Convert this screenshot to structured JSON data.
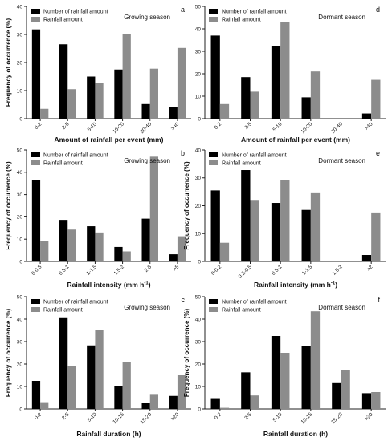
{
  "colors": {
    "number": "#000000",
    "amount": "#8c8c8c",
    "axis": "#222222"
  },
  "chart_data": [
    {
      "panel": "a",
      "season": "Growing season",
      "type": "bar",
      "categories": [
        "0-2",
        "2-5",
        "5-10",
        "10-20",
        "20-40",
        ">40"
      ],
      "series": [
        {
          "name": "Number of rainfall amount",
          "values": [
            31.8,
            26.5,
            15.0,
            17.5,
            5.2,
            4.2
          ]
        },
        {
          "name": "Rainfall amount",
          "values": [
            3.5,
            10.5,
            12.8,
            30.0,
            17.8,
            25.2
          ]
        }
      ],
      "xlabel": "Amount of rainfall per event (mm)",
      "ylabel": "Frequency of occurrence (%)",
      "ylim": [
        0,
        40
      ],
      "yticks": [
        0,
        10,
        20,
        30,
        40
      ],
      "legend": "top-left"
    },
    {
      "panel": "d",
      "season": "Dormant season",
      "type": "bar",
      "categories": [
        "0-2",
        "2-5",
        "5-10",
        "10-20",
        "20-40",
        ">40"
      ],
      "series": [
        {
          "name": "Number of rainfall amount",
          "values": [
            37.0,
            18.5,
            32.5,
            9.5,
            0,
            2.3
          ]
        },
        {
          "name": "Rainfall amount",
          "values": [
            6.5,
            12.0,
            43.0,
            21.0,
            0,
            17.3
          ]
        }
      ],
      "xlabel": "Amount of rainfall per event (mm)",
      "ylabel": "",
      "ylim": [
        0,
        50
      ],
      "yticks": [
        0,
        10,
        20,
        30,
        40,
        50
      ],
      "legend": "top-left"
    },
    {
      "panel": "b",
      "season": "Growing season",
      "type": "bar",
      "categories": [
        "0-0.5",
        "0.5-1",
        "1-1.5",
        "1.5-2",
        "2-5",
        ">5"
      ],
      "series": [
        {
          "name": "Number of rainfall amount",
          "values": [
            36.5,
            18.3,
            15.8,
            6.5,
            19.2,
            3.2
          ]
        },
        {
          "name": "Rainfall amount",
          "values": [
            9.3,
            14.3,
            13.0,
            4.5,
            47.0,
            11.3
          ]
        }
      ],
      "xlabel": "Rainfall intensity (mm h",
      "xlabel_sup": "-1",
      "xlabel_end": ")",
      "ylabel": "Frequency of occurrence (%)",
      "ylim": [
        0,
        50
      ],
      "yticks": [
        0,
        10,
        20,
        30,
        40,
        50
      ],
      "legend": "top-left"
    },
    {
      "panel": "e",
      "season": "Dormant season",
      "type": "bar",
      "categories": [
        "0-0.2",
        "0.2-0.5",
        "0.5-1",
        "1-1.5",
        "1.5-2",
        ">2"
      ],
      "series": [
        {
          "name": "Number of rainfall amount",
          "values": [
            25.5,
            32.8,
            21.0,
            18.5,
            0,
            2.3
          ]
        },
        {
          "name": "Rainfall amount",
          "values": [
            6.7,
            21.8,
            29.2,
            24.5,
            0,
            17.3
          ]
        }
      ],
      "xlabel": "Rainfall intensity (mm h",
      "xlabel_sup": "-1",
      "xlabel_end": ")",
      "ylabel": "Frequency of occurrence (%)",
      "ylim": [
        0,
        40
      ],
      "yticks": [
        0,
        10,
        20,
        30,
        40
      ],
      "legend": "top-left"
    },
    {
      "panel": "c",
      "season": "Growing season",
      "type": "bar",
      "categories": [
        "0-2",
        "2-5",
        "5-10",
        "10-15",
        "15-20",
        ">20"
      ],
      "series": [
        {
          "name": "Number of rainfall amount",
          "values": [
            12.5,
            40.8,
            28.3,
            10.0,
            2.8,
            5.8
          ]
        },
        {
          "name": "Rainfall amount",
          "values": [
            3.0,
            19.2,
            35.3,
            21.0,
            6.3,
            15.0
          ]
        }
      ],
      "xlabel": "Rainfall duration (h)",
      "ylabel": "Frequency of occurrence (%)",
      "ylim": [
        0,
        50
      ],
      "yticks": [
        0,
        10,
        20,
        30,
        40,
        50
      ],
      "legend": "top-left"
    },
    {
      "panel": "f",
      "season": "Dormant season",
      "type": "bar",
      "categories": [
        "0-2",
        "2-5",
        "5-10",
        "10-15",
        "15-20",
        ">20"
      ],
      "series": [
        {
          "name": "Number of rainfall amount",
          "values": [
            4.8,
            16.3,
            32.5,
            28.0,
            11.5,
            7.0
          ]
        },
        {
          "name": "Rainfall amount",
          "values": [
            0.5,
            6.0,
            25.0,
            43.5,
            17.3,
            7.5
          ]
        }
      ],
      "xlabel": "Rainfall duration (h)",
      "ylabel": "Frequency of occurrence (%)",
      "ylim": [
        0,
        50
      ],
      "yticks": [
        0,
        10,
        20,
        30,
        40,
        50
      ],
      "legend": "top-left"
    }
  ]
}
